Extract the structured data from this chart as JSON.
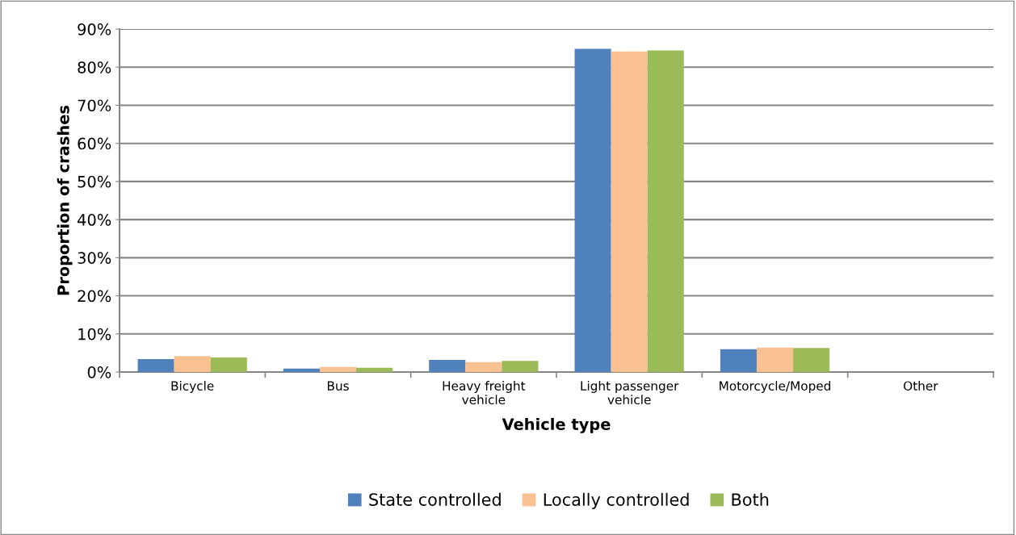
{
  "chart_data": {
    "type": "bar",
    "xlabel": "Vehicle type",
    "ylabel": "Proportion of crashes",
    "categories": [
      "Bicycle",
      "Bus",
      "Heavy freight\nvehicle",
      "Light passenger\nvehicle",
      "Motorcycle/Moped",
      "Other"
    ],
    "series": [
      {
        "name": "State controlled",
        "color": "#4f81bd",
        "values": [
          3.4,
          0.9,
          3.2,
          84.8,
          6.0,
          0
        ]
      },
      {
        "name": "Locally controlled",
        "color": "#f9c090",
        "values": [
          4.2,
          1.3,
          2.6,
          84.1,
          6.4,
          0
        ]
      },
      {
        "name": "Both",
        "color": "#9bbb59",
        "values": [
          3.8,
          1.1,
          2.9,
          84.4,
          6.3,
          0
        ]
      }
    ],
    "ylim": [
      0,
      90
    ],
    "yticks": [
      {
        "value": 0,
        "label": "0%"
      },
      {
        "value": 10,
        "label": "10%"
      },
      {
        "value": 20,
        "label": "20%"
      },
      {
        "value": 30,
        "label": "30%"
      },
      {
        "value": 40,
        "label": "40%"
      },
      {
        "value": 50,
        "label": "50%"
      },
      {
        "value": 60,
        "label": "60%"
      },
      {
        "value": 70,
        "label": "70%"
      },
      {
        "value": 80,
        "label": "80%"
      },
      {
        "value": 90,
        "label": "90%"
      }
    ],
    "grid": "y",
    "legend": "bottom"
  }
}
